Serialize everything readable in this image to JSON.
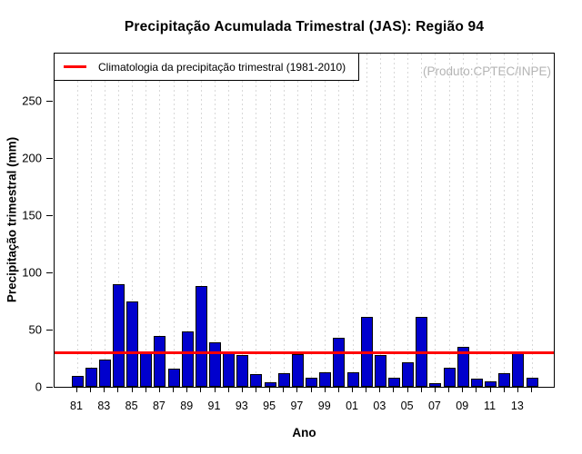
{
  "header": {
    "title": "Precipitação Acumulada Trimestral (JAS): Região 94",
    "watermark": "(Produto:CPTEC/INPE)"
  },
  "legend": {
    "label": "Climatologia da precipitação trimestral (1981-2010)",
    "position": "top-left"
  },
  "axes": {
    "xlabel": "Ano",
    "ylabel": "Precipitação trimestral (mm)"
  },
  "colors": {
    "bar_fill": "#0000cd",
    "bar_border": "#000000",
    "climatology_line": "#ff0000",
    "grid": "#d8d8d8",
    "watermark_text": "#b4b4b4",
    "text": "#000000"
  },
  "chart_data": {
    "type": "bar",
    "title": "Precipitação Acumulada Trimestral (JAS): Região 94",
    "xlabel": "Ano",
    "ylabel": "Precipitação trimestral (mm)",
    "categories": [
      "81",
      "82",
      "83",
      "84",
      "85",
      "86",
      "87",
      "88",
      "89",
      "90",
      "91",
      "92",
      "93",
      "94",
      "95",
      "96",
      "97",
      "98",
      "99",
      "00",
      "01",
      "02",
      "03",
      "04",
      "05",
      "06",
      "07",
      "08",
      "09",
      "10",
      "11",
      "12",
      "13",
      "14"
    ],
    "values": [
      9,
      16,
      23,
      89,
      74,
      29,
      44,
      15,
      48,
      87,
      38,
      30,
      27,
      10,
      3,
      11,
      28,
      7,
      12,
      42,
      12,
      60,
      27,
      7,
      21,
      60,
      2,
      16,
      34,
      6,
      4,
      11,
      30,
      7
    ],
    "xtick_labels_shown": [
      "81",
      "83",
      "85",
      "87",
      "89",
      "91",
      "93",
      "95",
      "97",
      "99",
      "01",
      "03",
      "05",
      "07",
      "09",
      "11",
      "13"
    ],
    "yticks": [
      0,
      50,
      100,
      150,
      200,
      250
    ],
    "ylim": [
      0,
      292
    ],
    "climatology_value": 29.5,
    "grid": "vertical-dotted",
    "legend_position": "top-left",
    "bar_color": "#0000cd"
  }
}
